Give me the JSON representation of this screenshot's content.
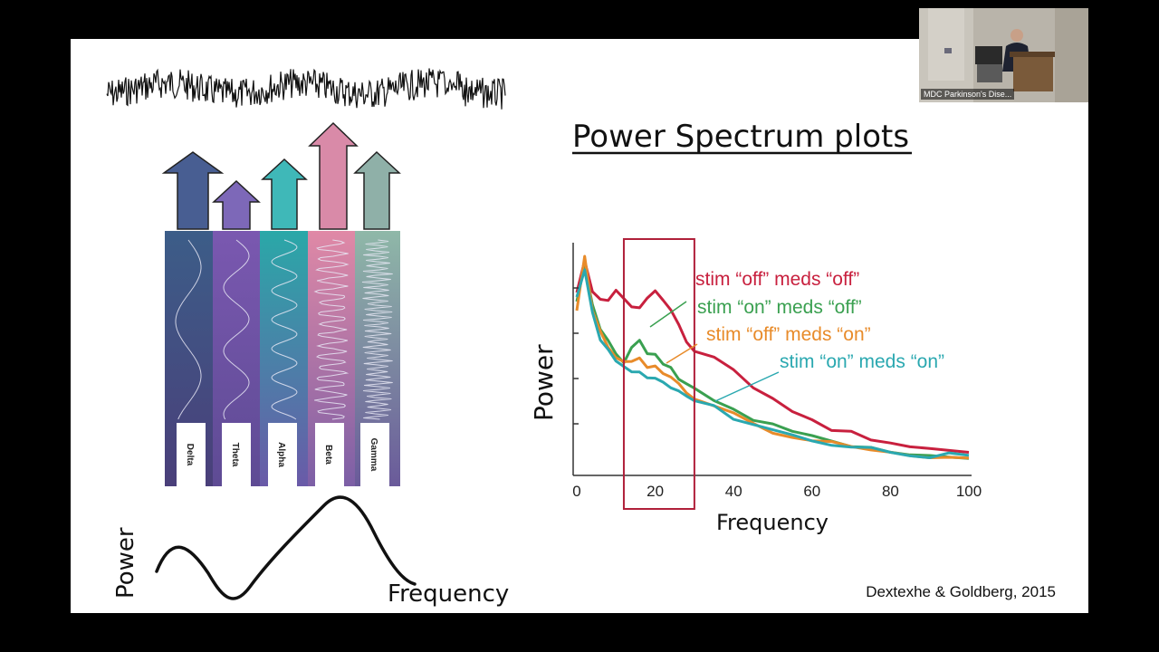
{
  "slide": {
    "title": "Power Spectrum plots",
    "citation": "Dextexhe & Goldberg, 2015",
    "bands": [
      "Delta",
      "Theta",
      "Alpha",
      "Beta",
      "Gamma"
    ],
    "band_colors": [
      "#485e92",
      "#7d68b8",
      "#3fb8b8",
      "#d98aa8",
      "#8fb0a8"
    ],
    "sketch": {
      "ylabel": "Power",
      "xlabel": "Frequency"
    },
    "chart_data": {
      "type": "line",
      "xlabel": "Frequency",
      "ylabel": "Power",
      "xlim": [
        0,
        100
      ],
      "x_ticks": [
        "0",
        "20",
        "40",
        "60",
        "80",
        "100"
      ],
      "highlight_range": [
        12,
        30
      ],
      "x": [
        0,
        2,
        4,
        6,
        8,
        10,
        12,
        14,
        16,
        18,
        20,
        22,
        24,
        26,
        28,
        30,
        35,
        40,
        45,
        50,
        55,
        60,
        65,
        70,
        75,
        80,
        85,
        90,
        95,
        100
      ],
      "series": [
        {
          "name": "stim “off” meds “off”",
          "color": "#c8203e",
          "values": [
            0.78,
            0.92,
            0.78,
            0.74,
            0.75,
            0.8,
            0.76,
            0.71,
            0.72,
            0.76,
            0.78,
            0.75,
            0.7,
            0.63,
            0.55,
            0.52,
            0.5,
            0.44,
            0.36,
            0.31,
            0.26,
            0.21,
            0.18,
            0.16,
            0.14,
            0.12,
            0.1,
            0.09,
            0.08,
            0.07
          ]
        },
        {
          "name": "stim “on” meds “off”",
          "color": "#3aa050",
          "values": [
            0.74,
            0.9,
            0.72,
            0.62,
            0.56,
            0.52,
            0.48,
            0.54,
            0.56,
            0.52,
            0.5,
            0.46,
            0.44,
            0.4,
            0.37,
            0.35,
            0.3,
            0.26,
            0.22,
            0.19,
            0.16,
            0.14,
            0.12,
            0.1,
            0.09,
            0.08,
            0.07,
            0.06,
            0.06,
            0.05
          ]
        },
        {
          "name": "stim “off” meds “on”",
          "color": "#e88b2a",
          "values": [
            0.7,
            0.94,
            0.7,
            0.6,
            0.54,
            0.5,
            0.47,
            0.47,
            0.48,
            0.46,
            0.45,
            0.43,
            0.41,
            0.37,
            0.34,
            0.32,
            0.28,
            0.24,
            0.2,
            0.17,
            0.15,
            0.13,
            0.11,
            0.1,
            0.08,
            0.07,
            0.06,
            0.06,
            0.05,
            0.05
          ]
        },
        {
          "name": "stim “on” meds “on”",
          "color": "#2aa8b0",
          "values": [
            0.76,
            0.88,
            0.68,
            0.58,
            0.52,
            0.47,
            0.45,
            0.44,
            0.42,
            0.4,
            0.4,
            0.38,
            0.36,
            0.34,
            0.32,
            0.3,
            0.27,
            0.23,
            0.2,
            0.17,
            0.15,
            0.13,
            0.11,
            0.1,
            0.09,
            0.08,
            0.07,
            0.06,
            0.06,
            0.05
          ]
        }
      ]
    }
  },
  "video": {
    "caption": "MDC Parkinson's Dise..."
  }
}
